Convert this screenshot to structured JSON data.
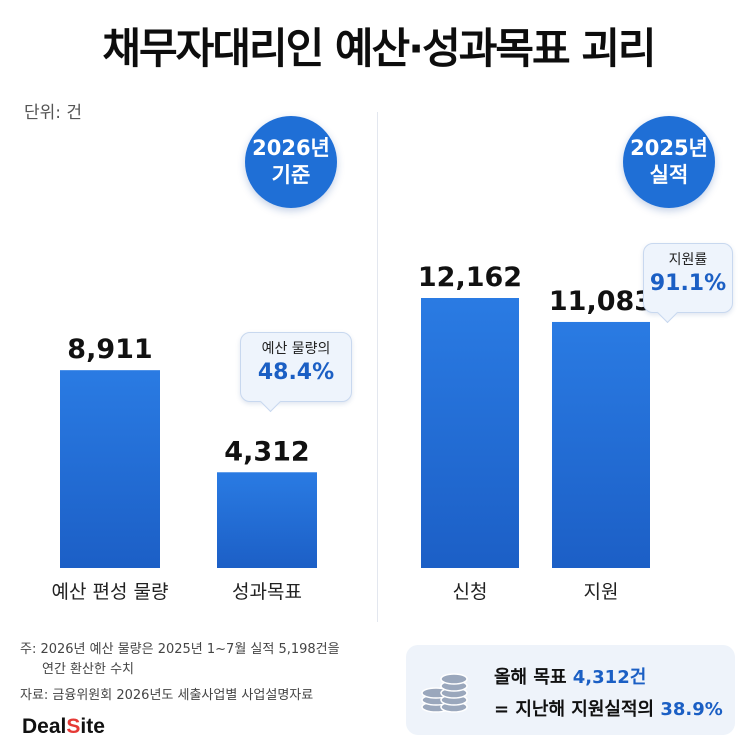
{
  "title": "채무자대리인 예산·성과목표 괴리",
  "unit": "단위: 건",
  "badges": {
    "left": {
      "line1": "2026년",
      "line2": "기준"
    },
    "right": {
      "line1": "2025년",
      "line2": "실적"
    }
  },
  "callouts": {
    "left": {
      "title": "예산 물량의",
      "value": "48.4%"
    },
    "right": {
      "title": "지원률",
      "value": "91.1%"
    }
  },
  "notes": {
    "line1": "주: 2026년 예산 물량은 2025년 1~7월 실적 5,198건을",
    "line2": "연간 환산한 수치",
    "source": "자료: 금융위원회 2026년도 세출사업별 사업설명자료"
  },
  "logo": {
    "main": "Deal",
    "accent": "S",
    "rest": "ite"
  },
  "summary": {
    "line1_prefix": "올해 목표 ",
    "line1_value": "4,312건",
    "line2_prefix": "= 지난해 지원실적의 ",
    "line2_value": "38.9%"
  },
  "colors": {
    "accent": "#1f6fd6",
    "highlight": "#1b5fc4"
  },
  "icons": {
    "coins": "coin-stack-icon"
  },
  "chart_data": [
    {
      "type": "bar",
      "categories": [
        "예산 편성 물량",
        "성과목표"
      ],
      "values": [
        8911,
        4312
      ],
      "value_labels": [
        "8,911",
        "4,312"
      ]
    },
    {
      "type": "bar",
      "categories": [
        "신청",
        "지원"
      ],
      "values": [
        12162,
        11083
      ],
      "value_labels": [
        "12,162",
        "11,083"
      ]
    }
  ]
}
